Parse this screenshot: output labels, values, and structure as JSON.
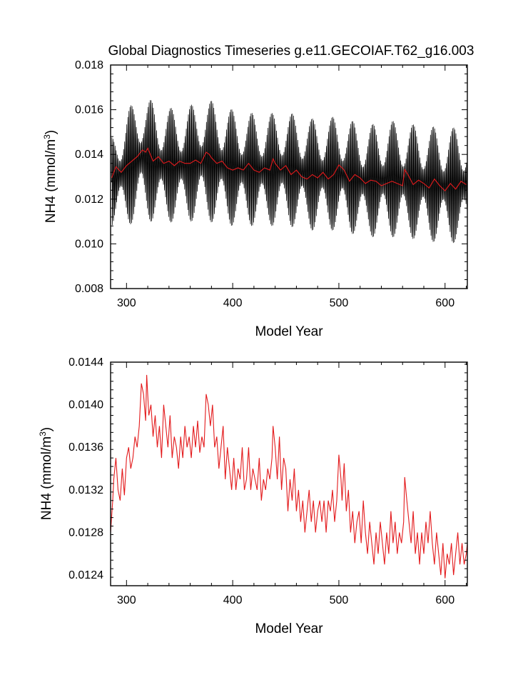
{
  "title": "Global Diagnostics Timeseries g.e11.GECOIAF.T62_g16.003",
  "colors": {
    "monthly": "#000000",
    "annual": "#e31a1c",
    "axes": "#000000"
  },
  "chart_data": [
    {
      "type": "line",
      "xlabel": "Model Year",
      "ylabel_main": "NH4 (mmol/m",
      "ylabel_sup": "3",
      "ylabel_close": ")",
      "xlim": [
        285,
        621
      ],
      "ylim": [
        0.008,
        0.018
      ],
      "xticks": [
        300,
        400,
        500,
        600
      ],
      "xtick_labels": [
        "300",
        "400",
        "500",
        "600"
      ],
      "yticks": [
        0.008,
        0.01,
        0.012,
        0.014,
        0.016,
        0.018
      ],
      "ytick_labels": [
        "0.008",
        "0.010",
        "0.012",
        "0.014",
        "0.016",
        "0.018"
      ],
      "grid": false,
      "series": [
        {
          "style": "monthly-envelope",
          "color": "#000000",
          "x": [
            286,
            300,
            315,
            330,
            350,
            375,
            400,
            425,
            450,
            475,
            500,
            525,
            550,
            575,
            600,
            621
          ],
          "upper": [
            0.0148,
            0.016,
            0.0167,
            0.0162,
            0.016,
            0.0165,
            0.016,
            0.0158,
            0.0159,
            0.0156,
            0.0157,
            0.0153,
            0.0155,
            0.0153,
            0.0152,
            0.0152
          ],
          "lower": [
            0.0107,
            0.0108,
            0.0111,
            0.0109,
            0.011,
            0.011,
            0.0108,
            0.0108,
            0.0108,
            0.0106,
            0.0106,
            0.0103,
            0.0103,
            0.0102,
            0.01,
            0.0101
          ]
        },
        {
          "style": "annual-mean",
          "color": "#e31a1c",
          "x": [
            286,
            290,
            295,
            300,
            305,
            310,
            315,
            318,
            320,
            325,
            330,
            335,
            340,
            345,
            350,
            355,
            360,
            365,
            370,
            375,
            378,
            380,
            385,
            390,
            395,
            400,
            405,
            410,
            415,
            420,
            425,
            430,
            435,
            438,
            440,
            445,
            450,
            455,
            460,
            465,
            470,
            475,
            480,
            485,
            490,
            495,
            500,
            503,
            505,
            510,
            515,
            520,
            525,
            530,
            535,
            540,
            545,
            550,
            555,
            560,
            562,
            565,
            570,
            575,
            580,
            585,
            590,
            595,
            600,
            605,
            610,
            615,
            620
          ],
          "y": [
            0.01295,
            0.01345,
            0.0132,
            0.0135,
            0.0137,
            0.0139,
            0.0142,
            0.0141,
            0.01428,
            0.0137,
            0.0139,
            0.0136,
            0.0137,
            0.0135,
            0.0137,
            0.0136,
            0.0136,
            0.01375,
            0.0136,
            0.0141,
            0.014,
            0.01385,
            0.0136,
            0.0137,
            0.0134,
            0.0133,
            0.0134,
            0.0133,
            0.0136,
            0.0133,
            0.0132,
            0.0134,
            0.0133,
            0.0138,
            0.0136,
            0.0133,
            0.0135,
            0.0131,
            0.0133,
            0.013,
            0.0129,
            0.0131,
            0.01295,
            0.0132,
            0.0129,
            0.0131,
            0.01353,
            0.0134,
            0.0133,
            0.0128,
            0.0131,
            0.01295,
            0.0127,
            0.01285,
            0.0128,
            0.0126,
            0.0127,
            0.0128,
            0.0127,
            0.0126,
            0.01332,
            0.0131,
            0.01265,
            0.01285,
            0.0127,
            0.0125,
            0.0129,
            0.0126,
            0.01237,
            0.0127,
            0.01245,
            0.0128,
            0.01265
          ]
        }
      ]
    },
    {
      "type": "line",
      "xlabel": "Model Year",
      "ylabel_main": "NH4 (mmol/m",
      "ylabel_sup": "3",
      "ylabel_close": ")",
      "xlim": [
        285,
        621
      ],
      "ylim": [
        0.0123,
        0.0144
      ],
      "xticks": [
        300,
        400,
        500,
        600
      ],
      "xtick_labels": [
        "300",
        "400",
        "500",
        "600"
      ],
      "yticks": [
        0.0124,
        0.0128,
        0.0132,
        0.0136,
        0.014,
        0.0144
      ],
      "ytick_labels": [
        "0.0124",
        "0.0128",
        "0.0132",
        "0.0136",
        "0.0140",
        "0.0144"
      ],
      "grid": false,
      "series": [
        {
          "style": "annual-mean",
          "color": "#e31a1c",
          "x": [
            285,
            287,
            288,
            290,
            292,
            294,
            296,
            298,
            300,
            302,
            304,
            306,
            308,
            310,
            312,
            314,
            316,
            318,
            319,
            321,
            323,
            325,
            327,
            329,
            331,
            333,
            335,
            337,
            339,
            341,
            343,
            345,
            347,
            349,
            351,
            353,
            355,
            357,
            359,
            361,
            363,
            365,
            367,
            369,
            371,
            373,
            375,
            377,
            379,
            381,
            383,
            385,
            387,
            389,
            391,
            393,
            395,
            397,
            399,
            401,
            403,
            405,
            407,
            409,
            411,
            413,
            415,
            417,
            419,
            421,
            423,
            425,
            427,
            429,
            431,
            433,
            435,
            437,
            438,
            440,
            442,
            444,
            446,
            448,
            450,
            452,
            454,
            456,
            458,
            460,
            462,
            464,
            466,
            468,
            470,
            472,
            474,
            476,
            478,
            480,
            482,
            484,
            486,
            488,
            490,
            492,
            494,
            496,
            498,
            500,
            502,
            503,
            505,
            507,
            509,
            511,
            513,
            515,
            517,
            519,
            521,
            523,
            525,
            527,
            529,
            531,
            533,
            535,
            537,
            539,
            541,
            543,
            545,
            547,
            549,
            551,
            553,
            555,
            557,
            559,
            561,
            562,
            564,
            566,
            568,
            570,
            572,
            574,
            576,
            578,
            580,
            582,
            584,
            586,
            588,
            590,
            592,
            594,
            596,
            598,
            600,
            602,
            604,
            606,
            608,
            610,
            612,
            614,
            616,
            618,
            620,
            621
          ],
          "y": [
            0.0128,
            0.0131,
            0.0133,
            0.0135,
            0.0132,
            0.0131,
            0.0134,
            0.01315,
            0.0135,
            0.0136,
            0.0134,
            0.0135,
            0.0137,
            0.0136,
            0.0138,
            0.0142,
            0.0141,
            0.01385,
            0.01428,
            0.0139,
            0.014,
            0.0137,
            0.0139,
            0.0136,
            0.0138,
            0.0135,
            0.014,
            0.0138,
            0.0136,
            0.0139,
            0.0135,
            0.0137,
            0.0136,
            0.0134,
            0.0137,
            0.0135,
            0.0138,
            0.0136,
            0.0137,
            0.0135,
            0.0138,
            0.0136,
            0.01385,
            0.01355,
            0.0137,
            0.0136,
            0.0141,
            0.014,
            0.0138,
            0.014,
            0.0136,
            0.0137,
            0.0134,
            0.0136,
            0.0138,
            0.0133,
            0.0136,
            0.0134,
            0.0132,
            0.0135,
            0.0132,
            0.0134,
            0.0133,
            0.0136,
            0.0132,
            0.0133,
            0.0136,
            0.0132,
            0.0134,
            0.0133,
            0.0132,
            0.0135,
            0.0131,
            0.0133,
            0.0132,
            0.0134,
            0.0133,
            0.0135,
            0.0138,
            0.0136,
            0.0133,
            0.0137,
            0.0132,
            0.0135,
            0.0134,
            0.013,
            0.0133,
            0.0131,
            0.0134,
            0.013,
            0.0132,
            0.0129,
            0.0131,
            0.0128,
            0.013,
            0.0132,
            0.0129,
            0.0131,
            0.0128,
            0.013,
            0.0131,
            0.0129,
            0.0131,
            0.0128,
            0.0131,
            0.013,
            0.0132,
            0.0129,
            0.0131,
            0.01353,
            0.0133,
            0.0131,
            0.01345,
            0.013,
            0.0132,
            0.0128,
            0.013,
            0.0127,
            0.0129,
            0.013,
            0.0127,
            0.0131,
            0.0128,
            0.0126,
            0.0129,
            0.0127,
            0.0125,
            0.0128,
            0.0126,
            0.0129,
            0.0127,
            0.0125,
            0.0128,
            0.0126,
            0.013,
            0.0127,
            0.0129,
            0.0126,
            0.0128,
            0.0127,
            0.0129,
            0.01332,
            0.0131,
            0.0129,
            0.0127,
            0.013,
            0.0126,
            0.0128,
            0.0125,
            0.0128,
            0.0126,
            0.0129,
            0.0127,
            0.013,
            0.0127,
            0.0125,
            0.0128,
            0.0126,
            0.0124,
            0.0127,
            0.01237,
            0.0126,
            0.0125,
            0.0127,
            0.0124,
            0.0126,
            0.0128,
            0.0125,
            0.0127,
            0.0125,
            0.0126,
            0.0127
          ]
        }
      ]
    }
  ]
}
